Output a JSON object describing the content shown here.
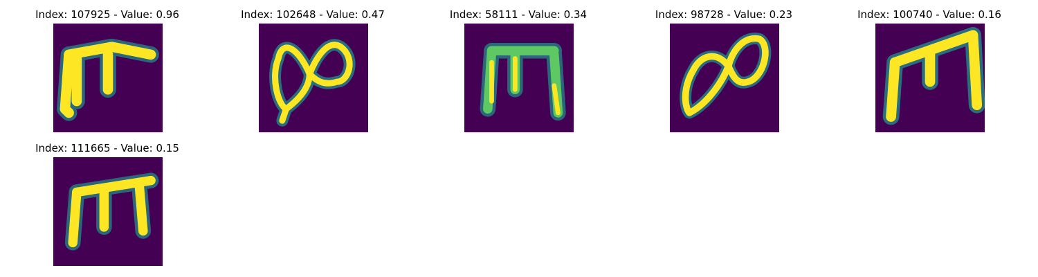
{
  "colors": {
    "background": "#440154",
    "low": "#3b528b",
    "mid": "#21918c",
    "high": "#5ec962",
    "peak": "#fde725"
  },
  "panels": [
    {
      "title": "Index: 107925 - Value: 0.96",
      "image": "glyph-pi-like"
    },
    {
      "title": "Index: 102648 - Value: 0.47",
      "image": "glyph-loops"
    },
    {
      "title": "Index: 58111 - Value: 0.34",
      "image": "glyph-m-like"
    },
    {
      "title": "Index: 98728 - Value: 0.23",
      "image": "glyph-loops-tilted"
    },
    {
      "title": "Index: 100740 - Value: 0.16",
      "image": "glyph-m-slanted"
    },
    {
      "title": "Index: 111665 - Value: 0.15",
      "image": "glyph-m-three-legs"
    }
  ]
}
